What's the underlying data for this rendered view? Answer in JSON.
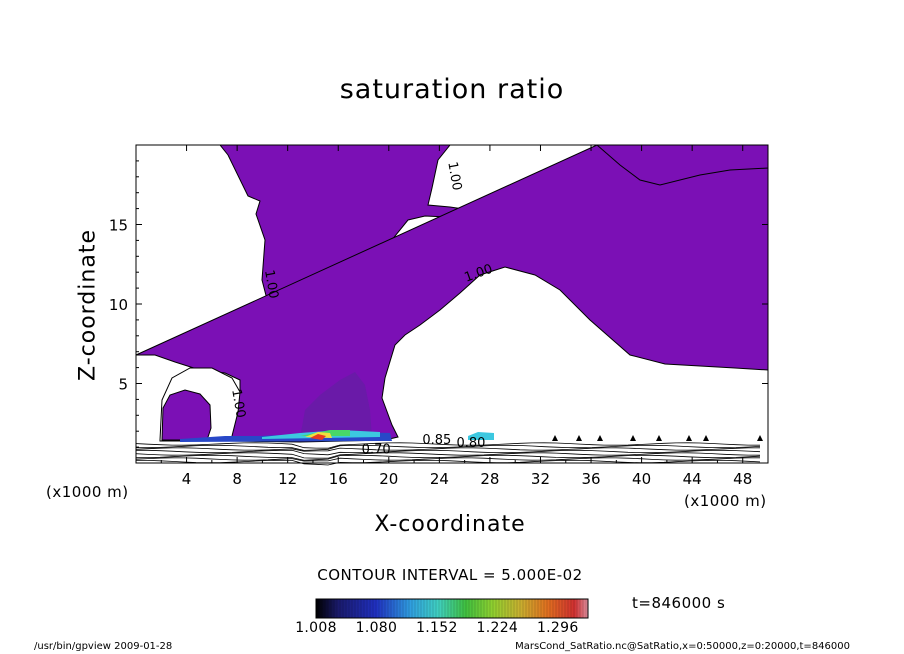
{
  "chart_data": {
    "type": "contour",
    "title": "saturation ratio",
    "xlabel": "X-coordinate",
    "ylabel": "Z-coordinate",
    "x_unit": "(x1000 m)",
    "z_unit": "(x1000 m)",
    "xlim": [
      0,
      50
    ],
    "ylim": [
      0,
      20
    ],
    "x_ticks": [
      4,
      8,
      12,
      16,
      20,
      24,
      28,
      32,
      36,
      40,
      44,
      48
    ],
    "y_ticks": [
      5,
      10,
      15
    ],
    "contour_interval_text": "CONTOUR INTERVAL = 5.000E-02",
    "contour_labels": [
      {
        "text": "1.00",
        "x": 24.9,
        "z": 18.0
      },
      {
        "text": "1.00",
        "x": 10.4,
        "z": 11.2
      },
      {
        "text": "1.00",
        "x": 27.2,
        "z": 11.7
      },
      {
        "text": "1.00",
        "x": 7.8,
        "z": 3.7
      },
      {
        "text": "0.85",
        "x": 23.8,
        "z": 1.2
      },
      {
        "text": "0.80",
        "x": 26.5,
        "z": 1.0
      },
      {
        "text": "0.70",
        "x": 19.0,
        "z": 0.6
      }
    ],
    "shaded_region_color": "#7b10b5",
    "colorbar": {
      "ticks": [
        "1.008",
        "1.080",
        "1.152",
        "1.224",
        "1.296"
      ],
      "min": 1.008,
      "max": 1.332
    },
    "time_label": "t=846000  s"
  },
  "footer": {
    "left": "/usr/bin/gpview   2009-01-28",
    "right": "MarsCond_SatRatio.nc@SatRatio,x=0:50000,z=0:20000,t=846000"
  }
}
